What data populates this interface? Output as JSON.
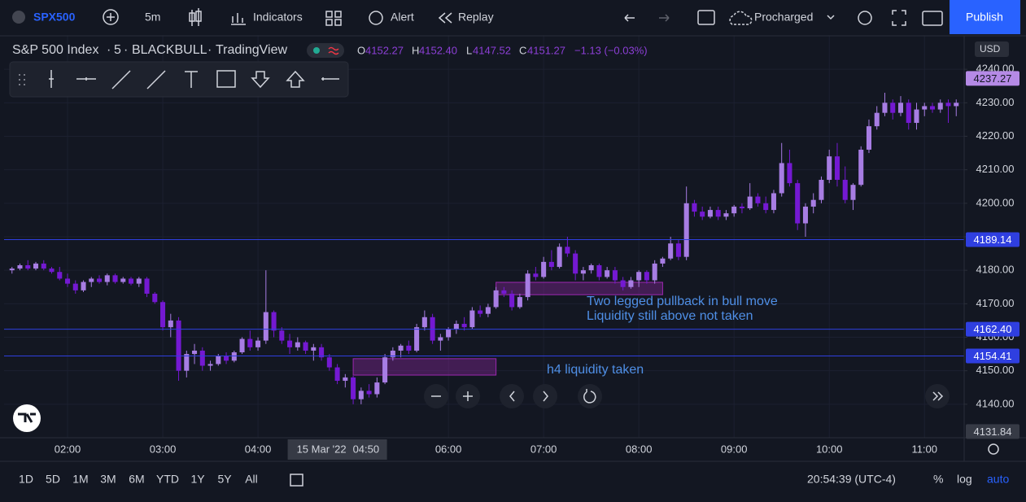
{
  "toolbar": {
    "symbol": "SPX500",
    "interval": "5m",
    "indicators": "Indicators",
    "alert": "Alert",
    "replay": "Replay",
    "layout": "Procharged",
    "publish": "Publish"
  },
  "legend": {
    "name": "S&P 500 Index",
    "interval": "5",
    "broker": "BLACKBULL",
    "source": "TradingView",
    "open_key": "O",
    "open": "4152.27",
    "high_key": "H",
    "high": "4152.40",
    "low_key": "L",
    "low": "4147.52",
    "close_key": "C",
    "close": "4151.27",
    "change": "−1.13 (−0.03%)"
  },
  "chart_data": {
    "type": "candlestick",
    "currency": "USD",
    "up_color": "#a77de3",
    "down_color": "#7419d2",
    "grid": true,
    "xlim": [
      "01:20",
      "11:25"
    ],
    "ylim": [
      4130,
      4250
    ],
    "xticks": [
      "02:00",
      "03:00",
      "04:00",
      "06:00",
      "07:00",
      "08:00",
      "09:00",
      "10:00",
      "11:00"
    ],
    "yticks": [
      {
        "value": 4140,
        "label": "4140.00"
      },
      {
        "value": 4150,
        "label": "4150.00"
      },
      {
        "value": 4160,
        "label": "4160.00"
      },
      {
        "value": 4170,
        "label": "4170.00"
      },
      {
        "value": 4180,
        "label": "4180.00"
      },
      {
        "value": 4190,
        "label": "4190.00"
      },
      {
        "value": 4200,
        "label": "4200.00"
      },
      {
        "value": 4210,
        "label": "4210.00"
      },
      {
        "value": 4220,
        "label": "4220.00"
      },
      {
        "value": 4230,
        "label": "4230.00"
      },
      {
        "value": 4240,
        "label": "4240.00"
      }
    ],
    "x": [
      "01:25",
      "01:30",
      "01:35",
      "01:40",
      "01:45",
      "01:50",
      "01:55",
      "02:00",
      "02:05",
      "02:10",
      "02:15",
      "02:20",
      "02:25",
      "02:30",
      "02:35",
      "02:40",
      "02:45",
      "02:50",
      "02:55",
      "03:00",
      "03:05",
      "03:10",
      "03:15",
      "03:20",
      "03:25",
      "03:30",
      "03:35",
      "03:40",
      "03:45",
      "03:50",
      "03:55",
      "04:00",
      "04:05",
      "04:10",
      "04:15",
      "04:20",
      "04:25",
      "04:30",
      "04:35",
      "04:40",
      "04:45",
      "04:50",
      "04:55",
      "05:00",
      "05:05",
      "05:10",
      "05:15",
      "05:20",
      "05:25",
      "05:30",
      "05:35",
      "05:40",
      "05:45",
      "05:50",
      "05:55",
      "06:00",
      "06:05",
      "06:10",
      "06:15",
      "06:20",
      "06:25",
      "06:30",
      "06:35",
      "06:40",
      "06:45",
      "06:50",
      "06:55",
      "07:00",
      "07:05",
      "07:10",
      "07:15",
      "07:20",
      "07:25",
      "07:30",
      "07:35",
      "07:40",
      "07:45",
      "07:50",
      "07:55",
      "08:00",
      "08:05",
      "08:10",
      "08:15",
      "08:20",
      "08:25",
      "08:30",
      "08:35",
      "08:40",
      "08:45",
      "08:50",
      "08:55",
      "09:00",
      "09:05",
      "09:10",
      "09:15",
      "09:20",
      "09:25",
      "09:30",
      "09:35",
      "09:40",
      "09:45",
      "09:50",
      "09:55",
      "10:00",
      "10:05",
      "10:10",
      "10:15",
      "10:20",
      "10:25",
      "10:30",
      "10:35",
      "10:40",
      "10:45",
      "10:50",
      "10:55",
      "11:00",
      "11:05",
      "11:10",
      "11:15",
      "11:20"
    ],
    "ohlc": [
      [
        4180,
        4181,
        4179,
        4180.5
      ],
      [
        4180.5,
        4182,
        4180,
        4181.5
      ],
      [
        4181.5,
        4183,
        4180,
        4180.5
      ],
      [
        4180.5,
        4182.5,
        4180,
        4182
      ],
      [
        4182,
        4183,
        4180,
        4180.5
      ],
      [
        4180.5,
        4181,
        4179,
        4179.5
      ],
      [
        4179.5,
        4181,
        4177,
        4177.5
      ],
      [
        4177.5,
        4179,
        4175,
        4176
      ],
      [
        4176,
        4177,
        4173,
        4174
      ],
      [
        4174,
        4177,
        4173.5,
        4176.5
      ],
      [
        4176.5,
        4178,
        4175,
        4177.5
      ],
      [
        4177.5,
        4178.5,
        4176,
        4176.5
      ],
      [
        4176.5,
        4179,
        4175.5,
        4178.5
      ],
      [
        4178.5,
        4179,
        4176,
        4176.5
      ],
      [
        4176.5,
        4178,
        4176,
        4177.5
      ],
      [
        4177.5,
        4178,
        4175.5,
        4176
      ],
      [
        4176,
        4178,
        4175,
        4177.5
      ],
      [
        4177.5,
        4178,
        4172,
        4173
      ],
      [
        4173,
        4173.5,
        4170,
        4170.5
      ],
      [
        4170.5,
        4171,
        4162,
        4163
      ],
      [
        4163,
        4167,
        4160,
        4165
      ],
      [
        4165,
        4166,
        4147,
        4150
      ],
      [
        4150,
        4156,
        4148,
        4155
      ],
      [
        4155,
        4158,
        4152,
        4156
      ],
      [
        4156,
        4157,
        4150,
        4151.5
      ],
      [
        4151.5,
        4153,
        4150,
        4152
      ],
      [
        4152,
        4155,
        4151.5,
        4154.5
      ],
      [
        4154.5,
        4155.5,
        4152,
        4153
      ],
      [
        4153,
        4156,
        4152.5,
        4155.5
      ],
      [
        4155.5,
        4160,
        4155,
        4159.5
      ],
      [
        4159.5,
        4162,
        4156,
        4157
      ],
      [
        4157,
        4160,
        4156,
        4159
      ],
      [
        4159,
        4180,
        4158,
        4167.5
      ],
      [
        4167.5,
        4168,
        4160,
        4162
      ],
      [
        4162,
        4163,
        4158,
        4159
      ],
      [
        4159,
        4161,
        4155,
        4157
      ],
      [
        4157,
        4160,
        4156,
        4158.5
      ],
      [
        4158.5,
        4159,
        4155,
        4156
      ],
      [
        4156,
        4158,
        4153,
        4157
      ],
      [
        4157,
        4158,
        4153,
        4154
      ],
      [
        4154,
        4155,
        4150,
        4151
      ],
      [
        4151,
        4152,
        4146,
        4147
      ],
      [
        4147,
        4149,
        4145,
        4148
      ],
      [
        4148,
        4148.5,
        4140,
        4141.5
      ],
      [
        4141.5,
        4145,
        4140,
        4144
      ],
      [
        4144,
        4146,
        4142,
        4143
      ],
      [
        4143,
        4148,
        4142,
        4146.5
      ],
      [
        4146.5,
        4155,
        4146,
        4154
      ],
      [
        4154,
        4157,
        4153,
        4156
      ],
      [
        4156,
        4158,
        4154,
        4157.5
      ],
      [
        4157.5,
        4159,
        4155,
        4156
      ],
      [
        4156,
        4164,
        4155.5,
        4163
      ],
      [
        4163,
        4168,
        4162,
        4166
      ],
      [
        4166,
        4167,
        4158,
        4159
      ],
      [
        4159,
        4161,
        4156,
        4160
      ],
      [
        4160,
        4163,
        4159,
        4162.5
      ],
      [
        4162.5,
        4165,
        4161,
        4164
      ],
      [
        4164,
        4166,
        4162,
        4163
      ],
      [
        4163,
        4169,
        4162.5,
        4168
      ],
      [
        4168,
        4169.5,
        4166,
        4167
      ],
      [
        4167,
        4170,
        4166,
        4169
      ],
      [
        4169,
        4175,
        4168.5,
        4174
      ],
      [
        4174,
        4175,
        4172,
        4173
      ],
      [
        4173,
        4174,
        4168,
        4169
      ],
      [
        4169,
        4173,
        4168.5,
        4172
      ],
      [
        4172,
        4180,
        4171,
        4179
      ],
      [
        4179,
        4181,
        4177,
        4178
      ],
      [
        4178,
        4184,
        4177.5,
        4182.5
      ],
      [
        4182.5,
        4186,
        4180,
        4181
      ],
      [
        4181,
        4188,
        4180.5,
        4187
      ],
      [
        4187,
        4190,
        4184,
        4185
      ],
      [
        4185,
        4186,
        4177,
        4179
      ],
      [
        4179,
        4181,
        4177,
        4180
      ],
      [
        4180,
        4182,
        4179,
        4181.5
      ],
      [
        4181.5,
        4182,
        4177,
        4178
      ],
      [
        4178,
        4181,
        4177.5,
        4180
      ],
      [
        4180,
        4181,
        4176,
        4177
      ],
      [
        4177,
        4178,
        4174,
        4175
      ],
      [
        4175,
        4178,
        4174.5,
        4177
      ],
      [
        4177,
        4180,
        4175,
        4179.5
      ],
      [
        4179.5,
        4180,
        4176,
        4177
      ],
      [
        4177,
        4183,
        4176,
        4182
      ],
      [
        4182,
        4184,
        4181,
        4183.5
      ],
      [
        4183.5,
        4190,
        4183,
        4188
      ],
      [
        4188,
        4189,
        4183,
        4184
      ],
      [
        4184,
        4205,
        4183,
        4200
      ],
      [
        4200,
        4201,
        4196,
        4197.5
      ],
      [
        4197.5,
        4199,
        4195,
        4196
      ],
      [
        4196,
        4199,
        4195.5,
        4198
      ],
      [
        4198,
        4199,
        4195,
        4196
      ],
      [
        4196,
        4198,
        4195,
        4197
      ],
      [
        4197,
        4199.5,
        4196,
        4199
      ],
      [
        4199,
        4200,
        4197,
        4198.5
      ],
      [
        4198.5,
        4206,
        4198,
        4202
      ],
      [
        4202,
        4203,
        4199,
        4200
      ],
      [
        4200,
        4202,
        4197,
        4198
      ],
      [
        4198,
        4204,
        4197,
        4203
      ],
      [
        4203,
        4218,
        4202,
        4212
      ],
      [
        4212,
        4216,
        4205,
        4206
      ],
      [
        4206,
        4207,
        4192,
        4194
      ],
      [
        4194,
        4200,
        4190,
        4199
      ],
      [
        4199,
        4203,
        4197,
        4201
      ],
      [
        4201,
        4208,
        4200,
        4207
      ],
      [
        4207,
        4216,
        4206,
        4214
      ],
      [
        4214,
        4218,
        4205,
        4207
      ],
      [
        4207,
        4211,
        4200,
        4201
      ],
      [
        4201,
        4206,
        4198,
        4205.5
      ],
      [
        4205.5,
        4217,
        4205,
        4216
      ],
      [
        4216,
        4225,
        4215,
        4223
      ],
      [
        4223,
        4229,
        4222,
        4227
      ],
      [
        4227,
        4233,
        4226,
        4230
      ],
      [
        4230,
        4231,
        4225,
        4227
      ],
      [
        4227,
        4232,
        4226,
        4230
      ],
      [
        4230,
        4231,
        4222,
        4224
      ],
      [
        4224,
        4230,
        4222,
        4228
      ],
      [
        4228,
        4230,
        4226,
        4229
      ],
      [
        4229,
        4230,
        4227,
        4228
      ],
      [
        4228,
        4231,
        4227,
        4230
      ],
      [
        4230,
        4231,
        4224,
        4229
      ],
      [
        4229,
        4231,
        4226,
        4230
      ]
    ],
    "hline_color": "#2f3fe0",
    "hlines": [
      {
        "value": 4189.14,
        "label": "4189.14"
      },
      {
        "value": 4162.4,
        "label": "4162.40"
      },
      {
        "value": 4154.41,
        "label": "4154.41"
      }
    ],
    "last_price": {
      "value": 4237.27,
      "label": "4237.27"
    },
    "crosshair": {
      "date": "15 Mar '22",
      "time": "04:50",
      "price": {
        "value": 4131.84,
        "label": "4131.84"
      }
    },
    "boxes": [
      {
        "x": [
          "05:00",
          "06:30"
        ],
        "y": [
          4148.7,
          4153.6
        ]
      },
      {
        "x": [
          "06:30",
          "08:15"
        ],
        "y": [
          4172.7,
          4176.4
        ]
      }
    ],
    "annotations": [
      "Two legged pullback in bull move",
      "Liquidity still above not taken",
      "h4 liquidity taken"
    ]
  },
  "timeframes": [
    "1D",
    "5D",
    "1M",
    "3M",
    "6M",
    "YTD",
    "1Y",
    "5Y",
    "All"
  ],
  "status": {
    "clock": "20:54:39 (UTC-4)",
    "percent": "%",
    "log": "log",
    "auto": "auto"
  }
}
